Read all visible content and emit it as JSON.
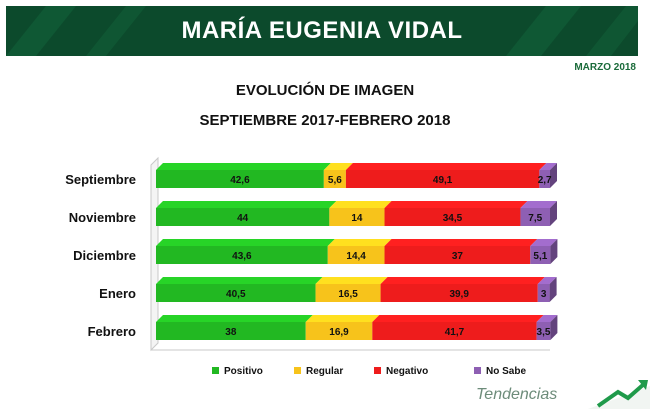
{
  "header": {
    "title": "MARÍA EUGENIA VIDAL",
    "date": "MARZO 2018",
    "chart_title": "EVOLUCIÓN DE IMAGEN",
    "chart_subtitle": "SEPTIEMBRE 2017-FEBRERO 2018"
  },
  "brand": {
    "name": "Tendencias",
    "icon": "trend-arrow-icon",
    "banner_color": "#0c4a2c"
  },
  "chart_data": {
    "type": "bar",
    "stacked": true,
    "orientation": "horizontal",
    "categories": [
      "Septiembre",
      "Noviembre",
      "Diciembre",
      "Enero",
      "Febrero"
    ],
    "series": [
      {
        "name": "Positivo",
        "color": "#22b822",
        "values": [
          42.6,
          44,
          43.6,
          40.5,
          38
        ],
        "labels": [
          "42,6",
          "44",
          "43,6",
          "40,5",
          "38"
        ]
      },
      {
        "name": "Regular",
        "color": "#f7c31b",
        "values": [
          5.6,
          14,
          14.4,
          16.5,
          16.9
        ],
        "labels": [
          "5,6",
          "14",
          "14,4",
          "16,5",
          "16,9"
        ]
      },
      {
        "name": "Negativo",
        "color": "#ee1c1c",
        "values": [
          49.1,
          34.5,
          37,
          39.9,
          41.7
        ],
        "labels": [
          "49,1",
          "34,5",
          "37",
          "39,9",
          "41,7"
        ]
      },
      {
        "name": "No Sabe",
        "color": "#8e5fb3",
        "values": [
          2.7,
          7.5,
          5.1,
          3,
          3.5
        ],
        "labels": [
          "2,7",
          "7,5",
          "5,1",
          "3",
          "3,5"
        ]
      }
    ],
    "xlim": [
      0,
      100
    ],
    "legend_position": "bottom",
    "grid": false
  }
}
